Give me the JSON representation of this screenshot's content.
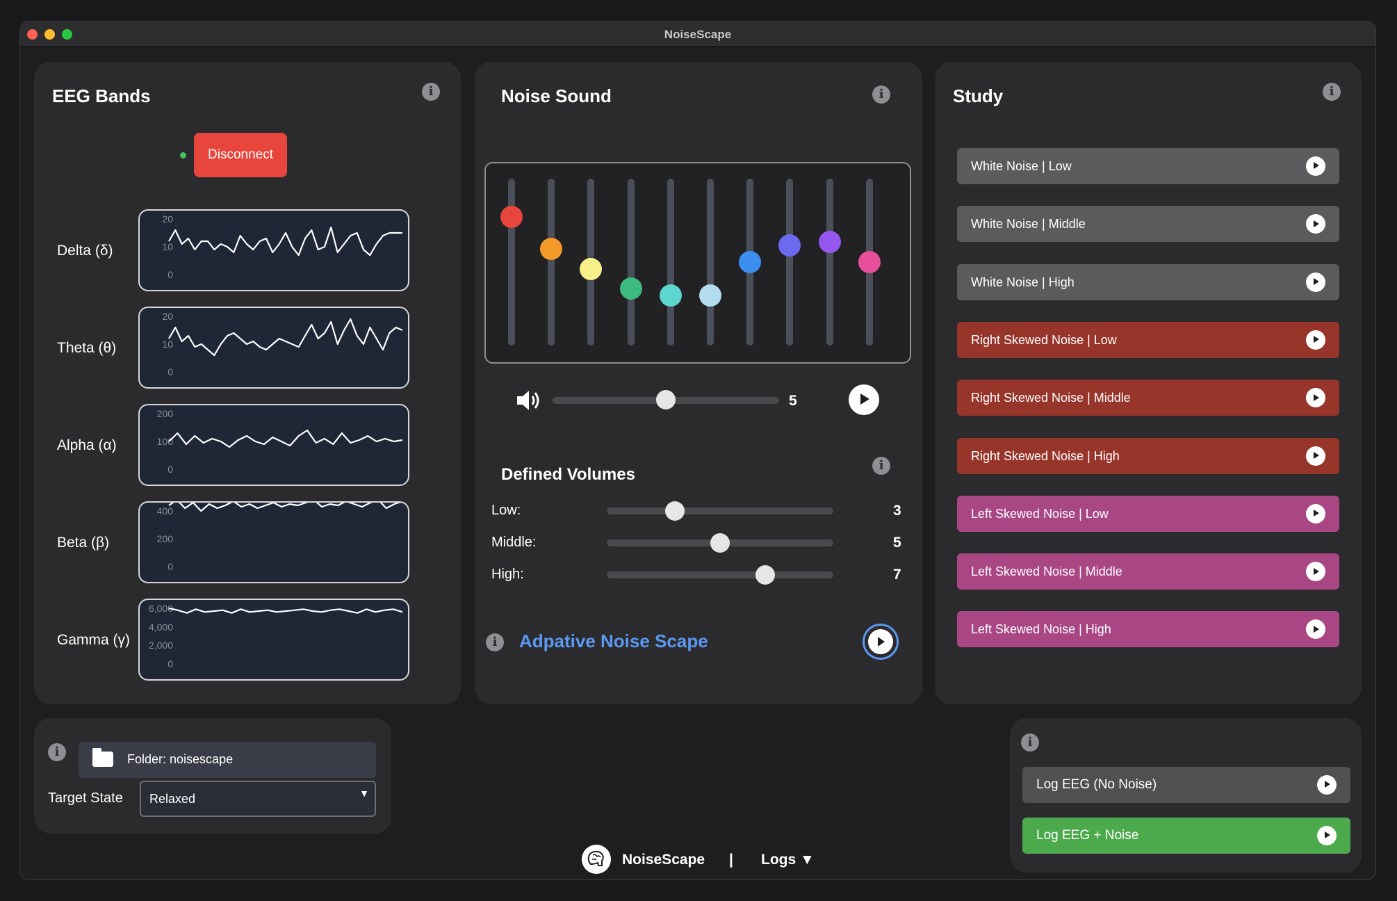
{
  "window": {
    "title": "NoiseScape"
  },
  "eeg": {
    "title": "EEG Bands",
    "disconnect_label": "Disconnect",
    "bands": [
      {
        "label": "Delta (δ)",
        "ticks": [
          "20",
          "10",
          "0"
        ],
        "values": [
          12,
          16,
          11,
          13,
          9,
          12,
          12,
          9,
          11,
          10,
          8,
          14,
          11,
          9,
          12,
          13,
          8,
          11,
          15,
          10,
          7,
          13,
          16,
          9,
          10,
          17,
          8,
          11,
          14,
          15,
          9,
          7,
          11,
          14,
          15,
          15,
          15
        ]
      },
      {
        "label": "Theta (θ)",
        "ticks": [
          "20",
          "10",
          "0"
        ],
        "values": [
          12,
          16,
          11,
          13,
          9,
          10,
          8,
          6,
          10,
          13,
          14,
          12,
          10,
          11,
          9,
          8,
          10,
          12,
          11,
          10,
          9,
          13,
          17,
          12,
          14,
          18,
          10,
          15,
          19,
          13,
          10,
          16,
          12,
          8,
          14,
          16,
          15
        ]
      },
      {
        "label": "Alpha (α)",
        "ticks": [
          "200",
          "100",
          "0"
        ],
        "values": [
          100,
          130,
          90,
          120,
          95,
          110,
          100,
          80,
          105,
          120,
          100,
          90,
          115,
          100,
          85,
          120,
          140,
          95,
          110,
          90,
          130,
          95,
          105,
          120,
          100,
          110,
          100,
          105
        ]
      },
      {
        "label": "Beta (β)",
        "ticks": [
          "400",
          "200",
          "0"
        ],
        "values": [
          440,
          480,
          420,
          460,
          400,
          450,
          420,
          440,
          470,
          430,
          450,
          420,
          440,
          460,
          430,
          450,
          440,
          460,
          480,
          430,
          450,
          440,
          470,
          450,
          430,
          460,
          480,
          420,
          450,
          470
        ]
      },
      {
        "label": "Gamma (γ)",
        "ticks": [
          "6,000",
          "4,000",
          "2,000",
          "0"
        ],
        "values": [
          6000,
          5800,
          5500,
          5900,
          5600,
          5700,
          5800,
          5500,
          5900,
          5600,
          5700,
          5800,
          5600,
          5700,
          5800,
          5900,
          5700,
          5600,
          5800,
          5900,
          5700,
          5500,
          5900,
          5600,
          5800,
          5900,
          5600
        ]
      }
    ]
  },
  "noise": {
    "title": "Noise Sound",
    "eq_knob_colors": [
      "#e8453c",
      "#f39a2b",
      "#f7ef8a",
      "#3dba7e",
      "#5cd6cf",
      "#b3dcef",
      "#3c8ef0",
      "#6b6af0",
      "#9458f0",
      "#e84f9a"
    ],
    "eq_levels": [
      0.77,
      0.58,
      0.46,
      0.34,
      0.3,
      0.3,
      0.5,
      0.6,
      0.62,
      0.5
    ],
    "volume_value": "5",
    "volume_level": 0.5,
    "defined_volumes_title": "Defined Volumes",
    "volumes": [
      {
        "label": "Low:",
        "value": "3",
        "level": 0.3
      },
      {
        "label": "Middle:",
        "value": "5",
        "level": 0.5
      },
      {
        "label": "High:",
        "value": "7",
        "level": 0.7
      }
    ],
    "adaptive_label": "Adpative Noise Scape"
  },
  "study": {
    "title": "Study",
    "items": [
      {
        "label": "White Noise | Low",
        "color": "#5b5b5e"
      },
      {
        "label": "White Noise | Middle",
        "color": "#5b5b5e"
      },
      {
        "label": "White Noise | High",
        "color": "#5b5b5e"
      },
      {
        "label": "Right Skewed Noise | Low",
        "color": "#98352b"
      },
      {
        "label": "Right Skewed Noise | Middle",
        "color": "#98352b"
      },
      {
        "label": "Right Skewed Noise | High",
        "color": "#98352b"
      },
      {
        "label": "Left Skewed Noise | Low",
        "color": "#a94684"
      },
      {
        "label": "Left Skewed Noise | Middle",
        "color": "#a94684"
      },
      {
        "label": "Left Skewed Noise | High",
        "color": "#a94684"
      }
    ]
  },
  "settings": {
    "folder_label": "Folder: noisescape",
    "target_label": "Target State",
    "target_value": "Relaxed"
  },
  "logs": {
    "items": [
      {
        "label": "Log EEG (No Noise)",
        "color": "#505053"
      },
      {
        "label": "Log EEG + Noise",
        "color": "#4caa4c"
      }
    ]
  },
  "footer": {
    "app_name": "NoiseScape",
    "separator": "|",
    "logs_menu": "Logs ▼"
  }
}
